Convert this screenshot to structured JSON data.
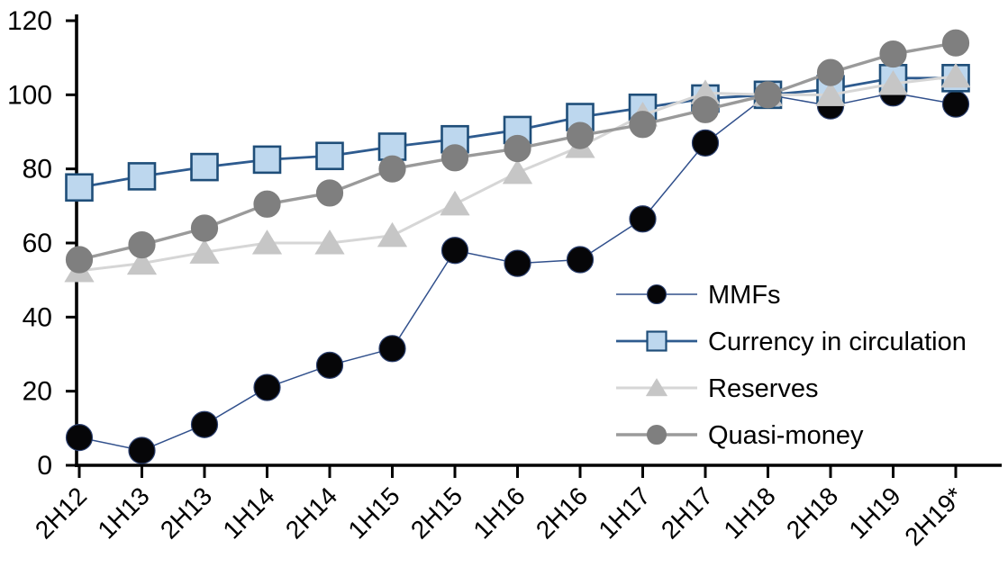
{
  "chart_data": {
    "type": "line",
    "title": "",
    "xlabel": "",
    "ylabel": "",
    "grid": false,
    "ylim": [
      0,
      120
    ],
    "yticks": [
      0,
      20,
      40,
      60,
      80,
      100,
      120
    ],
    "categories": [
      "2H12",
      "1H13",
      "2H13",
      "1H14",
      "2H14",
      "1H15",
      "2H15",
      "1H16",
      "2H16",
      "1H17",
      "2H17",
      "1H18",
      "2H18",
      "1H19",
      "2H19*"
    ],
    "series": [
      {
        "name": "MMFs",
        "marker": "circle",
        "marker_fill": "#060608",
        "marker_stroke": "#2b3f6e",
        "line_color": "#31508c",
        "line_width": 1.5,
        "values": [
          7.5,
          4,
          11,
          21,
          27,
          31.5,
          58,
          54.5,
          55.5,
          66.5,
          87,
          100,
          97,
          100.5,
          97.5
        ]
      },
      {
        "name": "Currency in circulation",
        "marker": "square",
        "marker_fill": "#bdd7ee",
        "marker_stroke": "#1f4e79",
        "line_color": "#2e5b8f",
        "line_width": 2.8,
        "values": [
          75,
          78,
          80.5,
          82.5,
          83.5,
          86,
          88,
          90.5,
          94,
          96.5,
          99,
          100,
          101.5,
          104.5,
          104.5
        ]
      },
      {
        "name": "Reserves",
        "marker": "triangle",
        "marker_fill": "#c6c6c6",
        "marker_stroke": "#c6c6c6",
        "line_color": "#d6d6d6",
        "line_width": 3,
        "values": [
          52.5,
          54.5,
          57.5,
          60,
          60,
          62,
          70.5,
          79,
          86,
          94.5,
          100.5,
          100,
          100,
          103,
          105
        ]
      },
      {
        "name": "Quasi-money",
        "marker": "circle",
        "marker_fill": "#7f7f7f",
        "marker_stroke": "#7f7f7f",
        "line_color": "#9a9a9a",
        "line_width": 3.4,
        "values": [
          55.5,
          59.5,
          64,
          70.5,
          73.5,
          80,
          83,
          85.5,
          89,
          92,
          96,
          100,
          106,
          111,
          114
        ]
      }
    ],
    "legend": {
      "position": "inside-right-middle",
      "items": [
        "MMFs",
        "Currency in circulation",
        "Reserves",
        "Quasi-money"
      ]
    },
    "axis_color": "#000000"
  }
}
